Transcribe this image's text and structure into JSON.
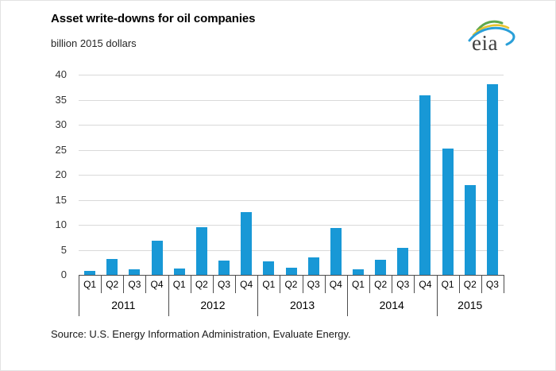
{
  "header": {
    "title": "Asset write-downs for oil companies",
    "subtitle": "billion 2015 dollars",
    "logo_text": "eia"
  },
  "source": "Source:  U.S. Energy Information Administration, Evaluate Energy.",
  "colors": {
    "bar": "#1898d6",
    "gridline": "#d9d9d9",
    "axis": "#4d4d4d",
    "tick": "#4d4d4d"
  },
  "chart_data": {
    "type": "bar",
    "title": "Asset write-downs for oil companies",
    "ylabel": "billion 2015 dollars",
    "ylim": [
      0,
      40
    ],
    "ytick_step": 5,
    "grid": "horizontal",
    "legend": "none",
    "categories": [
      "Q1 2011",
      "Q2 2011",
      "Q3 2011",
      "Q4 2011",
      "Q1 2012",
      "Q2 2012",
      "Q3 2012",
      "Q4 2012",
      "Q1 2013",
      "Q2 2013",
      "Q3 2013",
      "Q4 2013",
      "Q1 2014",
      "Q2 2014",
      "Q3 2014",
      "Q4 2014",
      "Q1 2015",
      "Q2 2015",
      "Q3 2015"
    ],
    "values": [
      0.8,
      3.1,
      1.1,
      6.8,
      1.2,
      9.6,
      2.8,
      12.6,
      2.7,
      1.4,
      3.5,
      9.3,
      1.1,
      3.0,
      5.4,
      35.8,
      25.3,
      18.0,
      38.1
    ],
    "groups": [
      {
        "year": "2011",
        "quarters": [
          "Q1",
          "Q2",
          "Q3",
          "Q4"
        ],
        "values": [
          0.8,
          3.1,
          1.1,
          6.8
        ]
      },
      {
        "year": "2012",
        "quarters": [
          "Q1",
          "Q2",
          "Q3",
          "Q4"
        ],
        "values": [
          1.2,
          9.6,
          2.8,
          12.6
        ]
      },
      {
        "year": "2013",
        "quarters": [
          "Q1",
          "Q2",
          "Q3",
          "Q4"
        ],
        "values": [
          2.7,
          1.4,
          3.5,
          9.3
        ]
      },
      {
        "year": "2014",
        "quarters": [
          "Q1",
          "Q2",
          "Q3",
          "Q4"
        ],
        "values": [
          1.1,
          3.0,
          5.4,
          35.8
        ]
      },
      {
        "year": "2015",
        "quarters": [
          "Q1",
          "Q2",
          "Q3"
        ],
        "values": [
          25.3,
          18.0,
          38.1
        ]
      }
    ]
  }
}
